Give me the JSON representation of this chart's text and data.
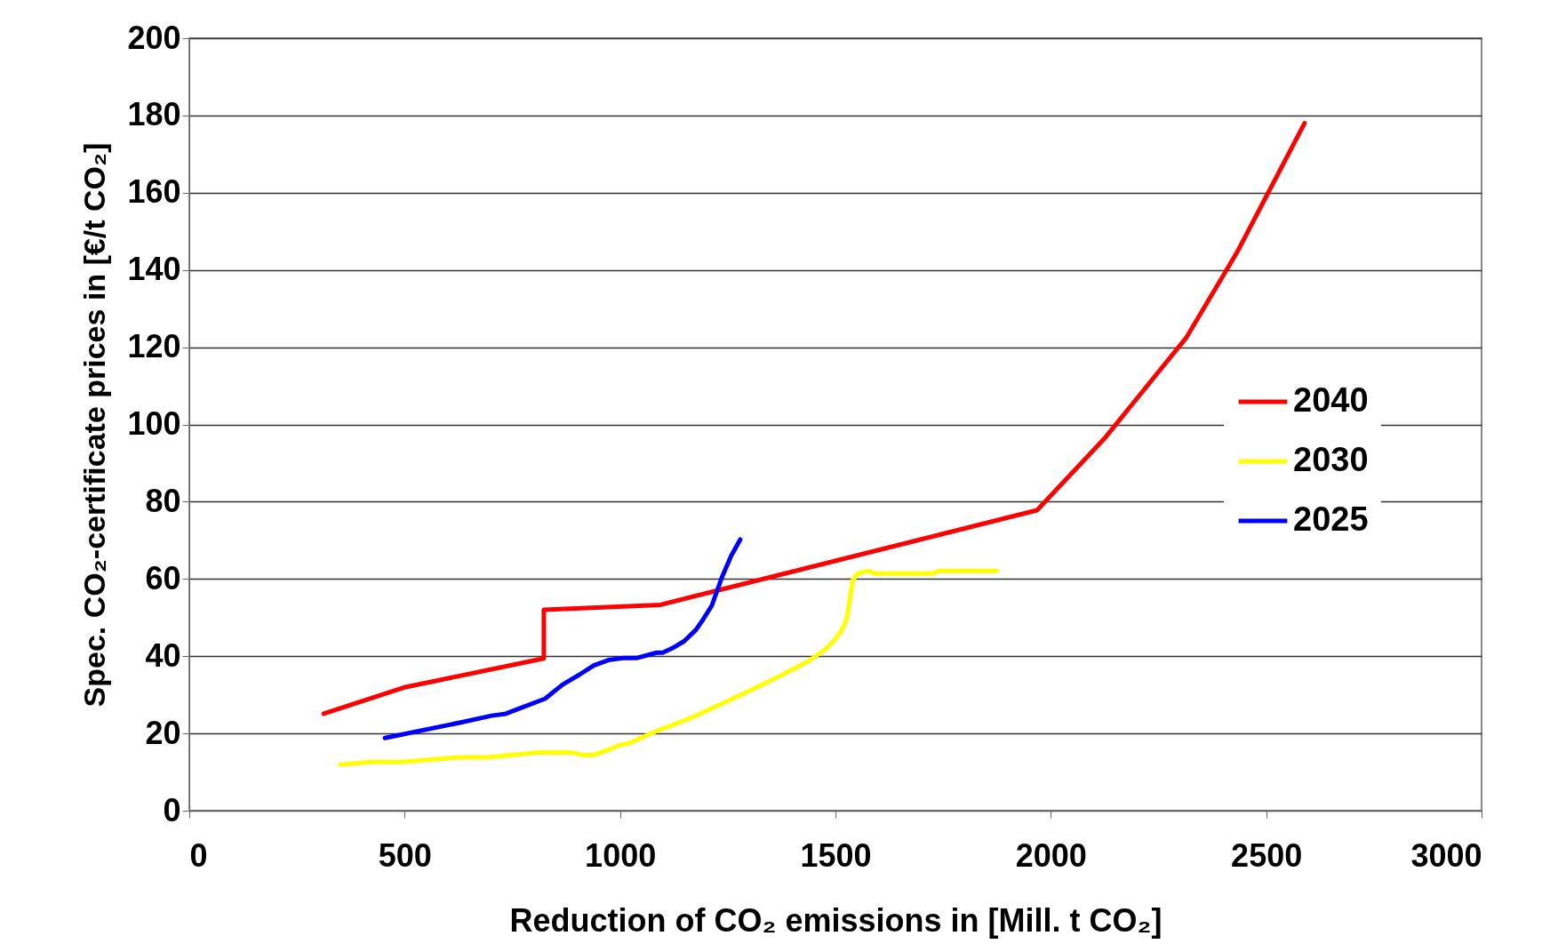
{
  "chart_data": {
    "type": "line",
    "xlabel": "Reduction of CO₂ emissions in [Mill. t CO₂]",
    "ylabel": "Spec. CO₂-certificate prices in [€/t CO₂]",
    "xlim": [
      0,
      3000
    ],
    "xticks": [
      0,
      500,
      1000,
      1500,
      2000,
      2500,
      3000
    ],
    "ylim": [
      0,
      200
    ],
    "yticks": [
      0,
      20,
      40,
      60,
      80,
      100,
      120,
      140,
      160,
      180,
      200
    ],
    "grid": "y",
    "legend": "right",
    "line_style": "solid",
    "marker": "none",
    "series": [
      {
        "name": "2040",
        "color": "#ff0000",
        "x": [
          312,
          502,
          823,
          823,
          1094,
          1968,
          2124,
          2314,
          2433,
          2589
        ],
        "values": [
          25.1,
          32,
          39.4,
          52,
          53.3,
          77.8,
          96.3,
          122.4,
          144.7,
          178
        ]
      },
      {
        "name": "2030",
        "color": "#ffff00",
        "x": [
          351,
          423,
          491,
          625,
          693,
          811,
          885,
          912,
          939,
          970,
          997,
          1022,
          1084,
          1156,
          1233,
          1300,
          1372,
          1434,
          1475,
          1498,
          1514,
          1525,
          1531,
          1537,
          1540,
          1552,
          1576,
          1592,
          1727,
          1741,
          1875
        ],
        "values": [
          11.9,
          12.6,
          12.6,
          13.8,
          13.8,
          15.1,
          15.1,
          14.4,
          14.4,
          15.6,
          16.9,
          17.5,
          20.6,
          23.6,
          27.5,
          31,
          34.9,
          38.5,
          41.6,
          44.2,
          46.6,
          49.2,
          52.9,
          57.3,
          59.6,
          61.4,
          62.1,
          61.4,
          61.4,
          62.1,
          62.1
        ]
      },
      {
        "name": "2025",
        "color": "#0000ff",
        "x": [
          454,
          628,
          702,
          735,
          770,
          826,
          866,
          904,
          939,
          973,
          1007,
          1038,
          1085,
          1099,
          1122,
          1149,
          1176,
          1191,
          1213,
          1236,
          1258,
          1279
        ],
        "values": [
          18.8,
          22.8,
          24.6,
          25.1,
          26.6,
          29,
          32.6,
          35.1,
          37.6,
          39,
          39.5,
          39.5,
          40.9,
          40.9,
          42.1,
          43.9,
          46.8,
          49.2,
          53.1,
          60.3,
          66,
          70.2
        ]
      }
    ]
  }
}
